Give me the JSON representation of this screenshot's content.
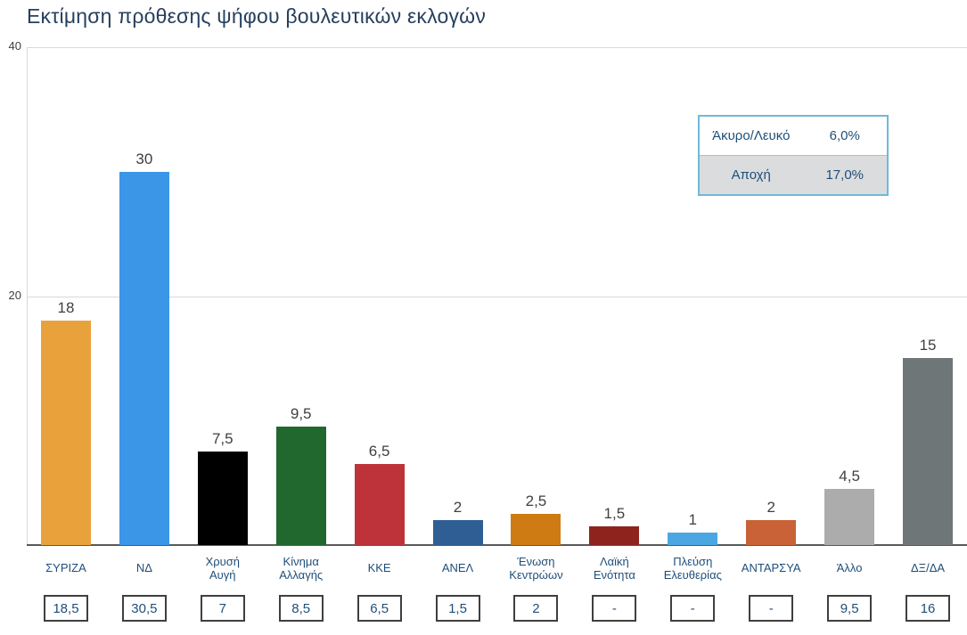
{
  "title": "Εκτίμηση πρόθεσης ψήφου βουλευτικών εκλογών",
  "chart_data": {
    "type": "bar",
    "title": "Εκτίμηση πρόθεσης ψήφου βουλευτικών εκλογών",
    "xlabel": "",
    "ylabel": "",
    "ylim": [
      0,
      40
    ],
    "y_ticks": [
      40,
      20
    ],
    "grid": true,
    "legend_position": "top-right",
    "categories": [
      "ΣΥΡΙΖΑ",
      "ΝΔ",
      "Χρυσή Αυγή",
      "Κίνημα Αλλαγής",
      "ΚΚΕ",
      "ΑΝΕΛ",
      "Ένωση Κεντρώων",
      "Λαϊκή Ενότητα",
      "Πλεύση Ελευθερίας",
      "ΑΝΤΑΡΣΥΑ",
      "Άλλο",
      "ΔΞ/ΔΑ"
    ],
    "x_tick_lines": [
      [
        "ΣΥΡΙΖΑ"
      ],
      [
        "ΝΔ"
      ],
      [
        "Χρυσή",
        "Αυγή"
      ],
      [
        "Κίνημα",
        "Αλλαγής"
      ],
      [
        "ΚΚΕ"
      ],
      [
        "ΑΝΕΛ"
      ],
      [
        "Ένωση",
        "Κεντρώων"
      ],
      [
        "Λαϊκή",
        "Ενότητα"
      ],
      [
        "Πλεύση",
        "Ελευθερίας"
      ],
      [
        "ΑΝΤΑΡΣΥΑ"
      ],
      [
        "Άλλο"
      ],
      [
        "ΔΞ/ΔΑ"
      ]
    ],
    "slugs": [
      "syriza",
      "nd",
      "chrysi-avgi",
      "kinima-allagis",
      "kke",
      "anel",
      "enosi-kentroon",
      "laiki-enotita",
      "plefsi-eleftherias",
      "antarsya",
      "allo",
      "dxda"
    ],
    "values": [
      18,
      30,
      7.5,
      9.5,
      6.5,
      2,
      2.5,
      1.5,
      1,
      2,
      4.5,
      15
    ],
    "value_labels": [
      "18",
      "30",
      "7,5",
      "9,5",
      "6,5",
      "2",
      "2,5",
      "1,5",
      "1",
      "2",
      "4,5",
      "15"
    ],
    "box_values": [
      "18,5",
      "30,5",
      "7",
      "8,5",
      "6,5",
      "1,5",
      "2",
      "-",
      "-",
      "-",
      "9,5",
      "16"
    ],
    "bar_colors": [
      "#E9A23B",
      "#3B96E8",
      "#000000",
      "#21682E",
      "#BE3339",
      "#2E5E93",
      "#CD7B12",
      "#8E231E",
      "#4AA7E2",
      "#C96237",
      "#ACACAC",
      "#6E7677"
    ]
  },
  "summary_table": {
    "rows": [
      {
        "label": "Άκυρο/Λευκό",
        "value": "6,0%"
      },
      {
        "label": "Αποχή",
        "value": "17,0%"
      }
    ]
  },
  "colors": {
    "title": "#26405E",
    "y_tick_text": "#404040",
    "value_label_text": "#3F3F3F",
    "x_label_text": "#1F4E79",
    "gridline": "#D9D9D9",
    "axis_line": "#595959",
    "box_border": "#3F3F3F",
    "box_text": "#1F4E79",
    "summary_border": "#6FB9D9",
    "summary_alt_row_bg": "#DBDCDE",
    "summary_text": "#1F4E79"
  }
}
